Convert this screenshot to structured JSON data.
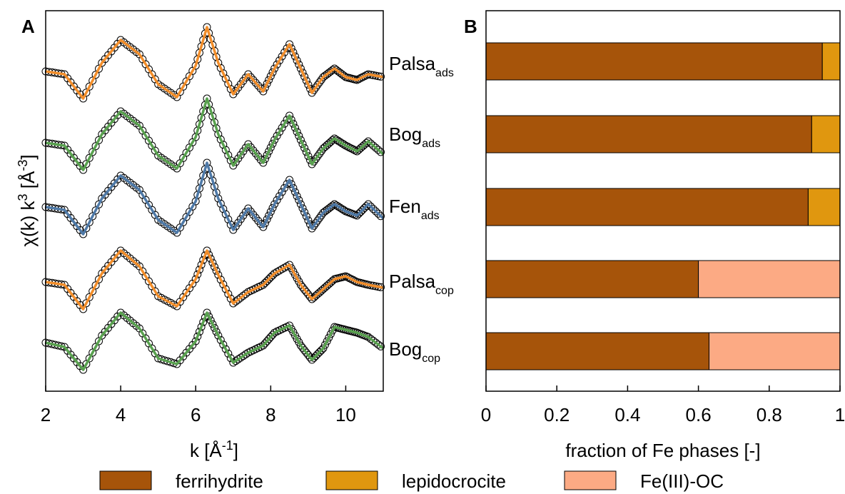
{
  "chart_data": [
    {
      "panel": "A",
      "type": "line",
      "xlabel": "k [Å⁻¹]",
      "xlabel_main": "k [Å",
      "xlabel_sup": "-1",
      "xlabel_end": "]",
      "ylabel": "χ(k) k³ [Å⁻³]",
      "ylabel_main": "χ(k) k",
      "ylabel_sup1": "3",
      "ylabel_mid": " [Å",
      "ylabel_sup2": "-3",
      "ylabel_end": "]",
      "xlim": [
        2,
        11
      ],
      "xticks": [
        2,
        4,
        6,
        8,
        10
      ],
      "yticks": [],
      "series": [
        {
          "name": "Palsa_ads",
          "label_main": "Palsa",
          "label_sub": "ads",
          "color": "#F28E2B",
          "offset": 4,
          "x": [
            2.0,
            2.5,
            3.0,
            3.5,
            4.0,
            4.5,
            5.0,
            5.5,
            6.0,
            6.3,
            6.6,
            7.0,
            7.4,
            7.8,
            8.1,
            8.5,
            8.8,
            9.1,
            9.4,
            9.7,
            10.0,
            10.3,
            10.6,
            11.0
          ],
          "y": [
            0.0,
            -0.1,
            -0.95,
            0.3,
            1.1,
            0.6,
            -0.45,
            -0.9,
            0.2,
            1.55,
            0.3,
            -0.8,
            -0.1,
            -0.7,
            0.1,
            0.95,
            0.1,
            -0.75,
            -0.2,
            0.1,
            -0.2,
            -0.3,
            -0.1,
            -0.2
          ]
        },
        {
          "name": "Bog_ads",
          "label_main": "Bog",
          "label_sub": "ads",
          "color": "#59A14F",
          "offset": 3,
          "x": [
            2.0,
            2.5,
            3.0,
            3.5,
            4.0,
            4.5,
            5.0,
            5.5,
            6.0,
            6.3,
            6.6,
            7.0,
            7.4,
            7.8,
            8.1,
            8.5,
            8.8,
            9.1,
            9.4,
            9.7,
            10.0,
            10.3,
            10.6,
            11.0
          ],
          "y": [
            0.0,
            -0.1,
            -0.95,
            0.3,
            1.1,
            0.6,
            -0.45,
            -0.9,
            0.2,
            1.55,
            0.3,
            -0.8,
            -0.05,
            -0.7,
            0.1,
            0.95,
            0.1,
            -0.75,
            -0.2,
            0.15,
            -0.1,
            -0.3,
            0.05,
            -0.4
          ]
        },
        {
          "name": "Fen_ads",
          "label_main": "Fen",
          "label_sub": "ads",
          "color": "#4E79A7",
          "offset": 2,
          "x": [
            2.0,
            2.5,
            3.0,
            3.5,
            4.0,
            4.5,
            5.0,
            5.5,
            6.0,
            6.3,
            6.6,
            7.0,
            7.4,
            7.8,
            8.1,
            8.5,
            8.8,
            9.1,
            9.4,
            9.7,
            10.0,
            10.3,
            10.6,
            11.0
          ],
          "y": [
            0.0,
            -0.1,
            -0.95,
            0.3,
            1.1,
            0.6,
            -0.45,
            -0.9,
            0.2,
            1.55,
            0.3,
            -0.8,
            -0.05,
            -0.7,
            0.1,
            0.95,
            0.1,
            -0.75,
            -0.2,
            0.1,
            -0.15,
            -0.3,
            0.1,
            -0.4
          ]
        },
        {
          "name": "Palsa_cop",
          "label_main": "Palsa",
          "label_sub": "cop",
          "color": "#F28E2B",
          "offset": 1,
          "x": [
            2.0,
            2.5,
            3.0,
            3.5,
            4.0,
            4.5,
            5.0,
            5.5,
            6.0,
            6.3,
            6.6,
            7.0,
            7.4,
            7.8,
            8.1,
            8.5,
            8.8,
            9.1,
            9.4,
            9.7,
            10.0,
            10.3,
            10.6,
            11.0
          ],
          "y": [
            0.0,
            -0.1,
            -0.95,
            0.3,
            1.1,
            0.55,
            -0.5,
            -0.85,
            0.1,
            1.1,
            0.25,
            -0.75,
            -0.35,
            -0.1,
            0.3,
            0.6,
            -0.1,
            -0.6,
            -0.25,
            0.1,
            0.2,
            0.0,
            -0.1,
            -0.2
          ]
        },
        {
          "name": "Bog_cop",
          "label_main": "Bog",
          "label_sub": "cop",
          "color": "#59A14F",
          "offset": 0,
          "x": [
            2.0,
            2.5,
            3.0,
            3.5,
            4.0,
            4.5,
            5.0,
            5.5,
            6.0,
            6.3,
            6.6,
            7.0,
            7.4,
            7.8,
            8.1,
            8.5,
            8.8,
            9.1,
            9.4,
            9.7,
            10.0,
            10.3,
            10.6,
            11.0
          ],
          "y": [
            0.0,
            -0.15,
            -0.95,
            0.25,
            1.05,
            0.5,
            -0.55,
            -0.75,
            0.05,
            1.05,
            0.25,
            -0.7,
            -0.35,
            -0.1,
            0.35,
            0.6,
            -0.1,
            -0.6,
            -0.2,
            0.55,
            0.45,
            0.35,
            0.2,
            -0.2
          ]
        }
      ]
    },
    {
      "panel": "B",
      "type": "bar",
      "orientation": "horizontal",
      "stacked": true,
      "xlabel": "fraction of Fe phases [-]",
      "xlim": [
        0,
        1
      ],
      "xticks": [
        "0",
        "0.2",
        "0.4",
        "0.6",
        "0.8",
        "1"
      ],
      "categories": [
        "Palsa_ads",
        "Bog_ads",
        "Fen_ads",
        "Palsa_cop",
        "Bog_cop"
      ],
      "series": [
        {
          "name": "ferrihydrite",
          "color": "#A6540A",
          "values": [
            0.95,
            0.92,
            0.91,
            0.6,
            0.63
          ]
        },
        {
          "name": "lepidocrocite",
          "color": "#E0970F",
          "values": [
            0.05,
            0.08,
            0.09,
            0.0,
            0.0
          ]
        },
        {
          "name": "Fe(III)-OC",
          "color": "#FCAA84",
          "values": [
            0.0,
            0.0,
            0.0,
            0.4,
            0.37
          ]
        }
      ]
    }
  ],
  "legend": {
    "placement": "bottom",
    "items": [
      {
        "label": "ferrihydrite",
        "color": "#A6540A"
      },
      {
        "label": "lepidocrocite",
        "color": "#E0970F"
      },
      {
        "label": "Fe(III)-OC",
        "color": "#FCAA84"
      }
    ]
  }
}
